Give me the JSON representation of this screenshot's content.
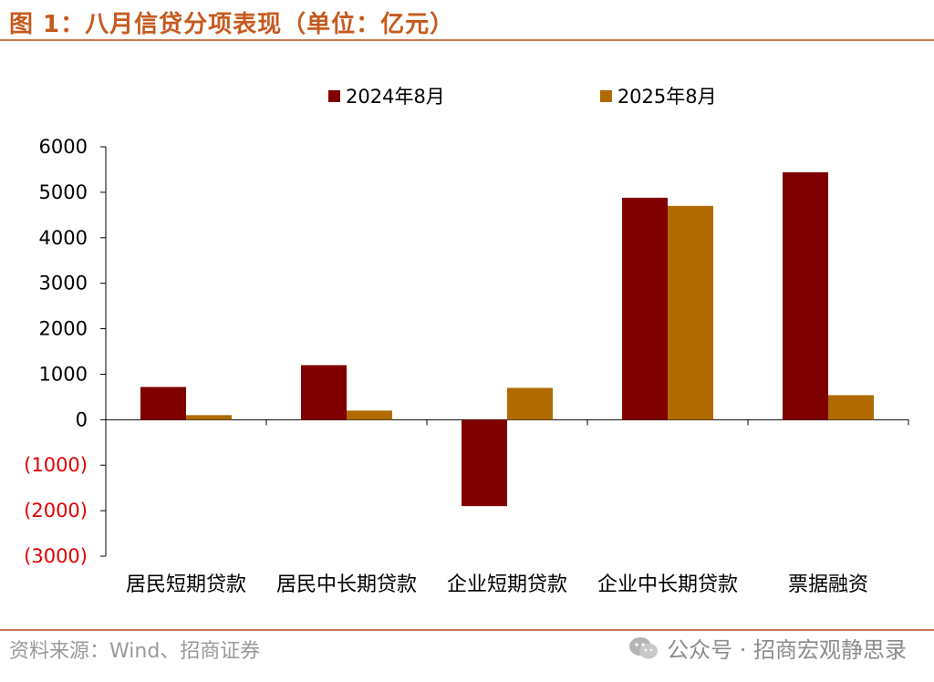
{
  "header": {
    "title": "图 1：八月信贷分项表现（单位：亿元）"
  },
  "footer": {
    "source": "资料来源：Wind、招商证券",
    "watermark": "公众号 · 招商宏观静思录"
  },
  "colors": {
    "series_2024": "#7F0000",
    "series_2025": "#B06A00",
    "accent": "#C65A1E",
    "negative_tick": "#E00000"
  },
  "chart_data": {
    "type": "bar",
    "title": "",
    "xlabel": "",
    "ylabel": "",
    "categories": [
      "居民短期贷款",
      "居民中长期贷款",
      "企业短期贷款",
      "企业中长期贷款",
      "票据融资"
    ],
    "series": [
      {
        "name": "2024年8月",
        "values": [
          720,
          1200,
          -1900,
          4880,
          5440
        ],
        "color": "#7F0000"
      },
      {
        "name": "2025年8月",
        "values": [
          100,
          200,
          700,
          4700,
          540
        ],
        "color": "#B06A00"
      }
    ],
    "ylim": [
      -3000,
      6000
    ],
    "yticks": [
      6000,
      5000,
      4000,
      3000,
      2000,
      1000,
      0,
      -1000,
      -2000,
      -3000
    ],
    "ytick_labels": [
      "6000",
      "5000",
      "4000",
      "3000",
      "2000",
      "1000",
      "0",
      "(1000)",
      "(2000)",
      "(3000)"
    ],
    "grid": false,
    "legend_position": "top"
  }
}
